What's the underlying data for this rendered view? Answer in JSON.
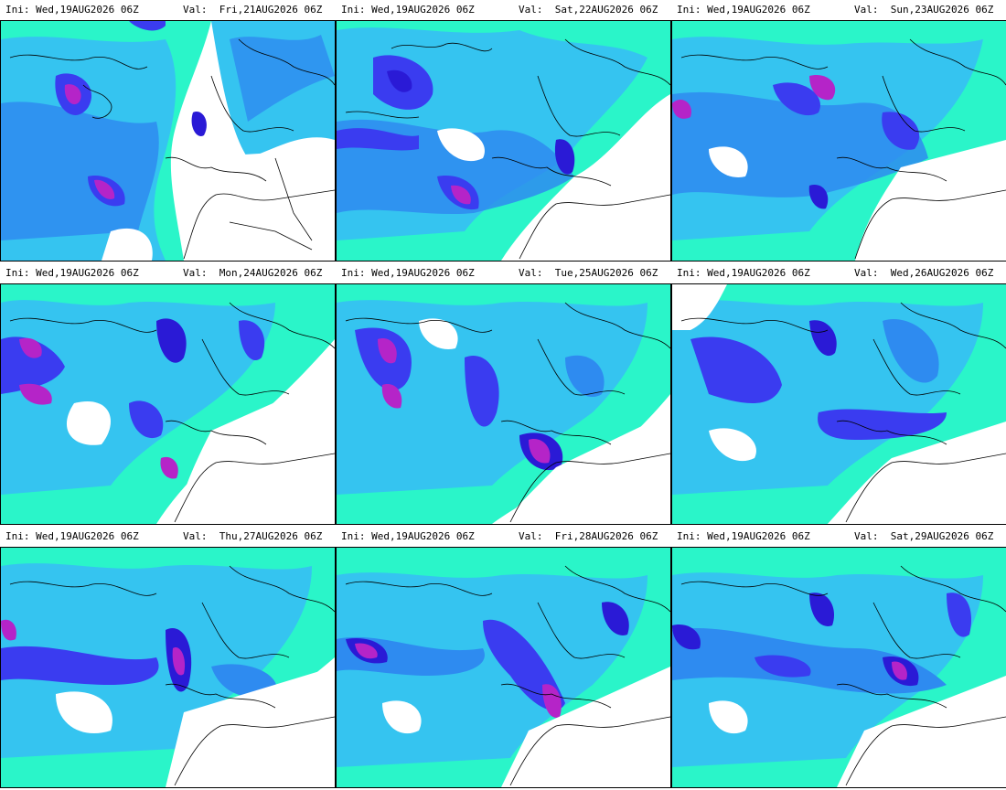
{
  "colors": {
    "background": "#ffffff",
    "coast": "#000000",
    "pale": "#2af5c9",
    "light": "#35c4f0",
    "mid": "#2e8bf0",
    "strong": "#3a3cf0",
    "very_strong": "#2a1ad6",
    "extreme": "#b524c8"
  },
  "panels": [
    {
      "ini": "Ini: Wed,19AUG2026 06Z",
      "val": "Val:  Fri,21AUG2026 06Z"
    },
    {
      "ini": "Ini: Wed,19AUG2026 06Z",
      "val": "Val:  Sat,22AUG2026 06Z"
    },
    {
      "ini": "Ini: Wed,19AUG2026 06Z",
      "val": "Val:  Sun,23AUG2026 06Z"
    },
    {
      "ini": "Ini: Wed,19AUG2026 06Z",
      "val": "Val:  Mon,24AUG2026 06Z"
    },
    {
      "ini": "Ini: Wed,19AUG2026 06Z",
      "val": "Val:  Tue,25AUG2026 06Z"
    },
    {
      "ini": "Ini: Wed,19AUG2026 06Z",
      "val": "Val:  Wed,26AUG2026 06Z"
    },
    {
      "ini": "Ini: Wed,19AUG2026 06Z",
      "val": "Val:  Thu,27AUG2026 06Z"
    },
    {
      "ini": "Ini: Wed,19AUG2026 06Z",
      "val": "Val:  Fri,28AUG2026 06Z"
    },
    {
      "ini": "Ini: Wed,19AUG2026 06Z",
      "val": "Val:  Sat,29AUG2026 06Z"
    }
  ]
}
